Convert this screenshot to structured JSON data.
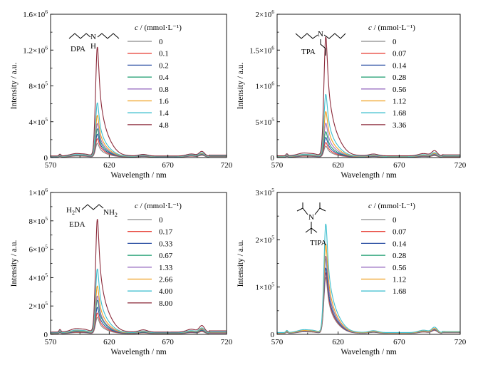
{
  "chart_data": [
    {
      "type": "line",
      "molecule_label": "DPA",
      "molecule_formula_text": [
        "N",
        "H"
      ],
      "xlabel": "Wavelength / nm",
      "ylabel": "Intensity / a.u.",
      "xlim": [
        570,
        720
      ],
      "ylim": [
        0,
        1600000
      ],
      "x_ticks": [
        570,
        620,
        670,
        720
      ],
      "x_tick_labels": [
        "570",
        "620",
        "670",
        "720"
      ],
      "y_ticks": [
        0,
        400000,
        800000,
        1200000,
        1600000
      ],
      "y_tick_labels": [
        [
          "0",
          ""
        ],
        [
          "4×10",
          "5"
        ],
        [
          "8×10",
          "5"
        ],
        [
          "1.2×10",
          "6"
        ],
        [
          "1.6×10",
          "6"
        ]
      ],
      "legend_title": "c / (mmol·L⁻¹)",
      "legend_position": "top-right",
      "peak_x": 610,
      "series": [
        {
          "name": "0",
          "color": "#8a8a8a",
          "peak": 160000,
          "baseline": 18000
        },
        {
          "name": "0.1",
          "color": "#e8463c",
          "peak": 210000,
          "baseline": 22000
        },
        {
          "name": "0.2",
          "color": "#2b4fa3",
          "peak": 260000,
          "baseline": 25000
        },
        {
          "name": "0.4",
          "color": "#1a9c6e",
          "peak": 320000,
          "baseline": 28000
        },
        {
          "name": "0.8",
          "color": "#9a6fc2",
          "peak": 380000,
          "baseline": 31000
        },
        {
          "name": "1.6",
          "color": "#f0a020",
          "peak": 470000,
          "baseline": 34000
        },
        {
          "name": "1.4",
          "color": "#3fbfcf",
          "peak": 610000,
          "baseline": 38000
        },
        {
          "name": "4.8",
          "color": "#8b2a3a",
          "peak": 1230000,
          "baseline": 50000
        }
      ]
    },
    {
      "type": "line",
      "molecule_label": "TPA",
      "molecule_formula_text": [
        "N"
      ],
      "xlabel": "Wavelength / nm",
      "ylabel": "Intensity / a.u.",
      "xlim": [
        570,
        720
      ],
      "ylim": [
        0,
        2000000
      ],
      "x_ticks": [
        570,
        620,
        670,
        720
      ],
      "x_tick_labels": [
        "570",
        "620",
        "670",
        "720"
      ],
      "y_ticks": [
        0,
        500000,
        1000000,
        1500000,
        2000000
      ],
      "y_tick_labels": [
        [
          "0",
          ""
        ],
        [
          "5×10",
          "5"
        ],
        [
          "1×10",
          "6"
        ],
        [
          "1.5×10",
          "6"
        ],
        [
          "2×10",
          "6"
        ]
      ],
      "legend_title": "c / (mmol·L⁻¹)",
      "legend_position": "top-right",
      "peak_x": 610,
      "series": [
        {
          "name": "0",
          "color": "#8a8a8a",
          "peak": 160000,
          "baseline": 20000
        },
        {
          "name": "0.07",
          "color": "#e8463c",
          "peak": 210000,
          "baseline": 24000
        },
        {
          "name": "0.14",
          "color": "#2b4fa3",
          "peak": 280000,
          "baseline": 28000
        },
        {
          "name": "0.28",
          "color": "#1a9c6e",
          "peak": 360000,
          "baseline": 32000
        },
        {
          "name": "0.56",
          "color": "#9a6fc2",
          "peak": 480000,
          "baseline": 36000
        },
        {
          "name": "1.12",
          "color": "#f0a020",
          "peak": 640000,
          "baseline": 42000
        },
        {
          "name": "1.68",
          "color": "#3fbfcf",
          "peak": 880000,
          "baseline": 50000
        },
        {
          "name": "3.36",
          "color": "#8b2a3a",
          "peak": 1680000,
          "baseline": 70000
        }
      ]
    },
    {
      "type": "line",
      "molecule_label": "EDA",
      "molecule_formula_text": [
        "H",
        "2",
        "N",
        "NH",
        "2"
      ],
      "xlabel": "Wavelength / nm",
      "ylabel": "Intensity / a.u.",
      "xlim": [
        570,
        720
      ],
      "ylim": [
        0,
        1000000
      ],
      "x_ticks": [
        570,
        620,
        670,
        720
      ],
      "x_tick_labels": [
        "570",
        "620",
        "670",
        "720"
      ],
      "y_ticks": [
        0,
        200000,
        400000,
        600000,
        800000,
        1000000
      ],
      "y_tick_labels": [
        [
          "0",
          ""
        ],
        [
          "2×10",
          "5"
        ],
        [
          "4×10",
          "5"
        ],
        [
          "6×10",
          "5"
        ],
        [
          "8×10",
          "5"
        ],
        [
          "1×10",
          "6"
        ]
      ],
      "legend_title": "c / (mmol·L⁻¹)",
      "legend_position": "top-right",
      "peak_x": 610,
      "series": [
        {
          "name": "0",
          "color": "#8a8a8a",
          "peak": 120000,
          "baseline": 14000
        },
        {
          "name": "0.17",
          "color": "#e8463c",
          "peak": 150000,
          "baseline": 17000
        },
        {
          "name": "0.33",
          "color": "#2b4fa3",
          "peak": 190000,
          "baseline": 20000
        },
        {
          "name": "0.67",
          "color": "#1a9c6e",
          "peak": 240000,
          "baseline": 23000
        },
        {
          "name": "1.33",
          "color": "#9a6fc2",
          "peak": 270000,
          "baseline": 26000
        },
        {
          "name": "2.66",
          "color": "#f0a020",
          "peak": 340000,
          "baseline": 29000
        },
        {
          "name": "4.00",
          "color": "#3fbfcf",
          "peak": 460000,
          "baseline": 33000
        },
        {
          "name": "8.00",
          "color": "#8b2a3a",
          "peak": 810000,
          "baseline": 45000
        }
      ]
    },
    {
      "type": "line",
      "molecule_label": "TIPA",
      "molecule_formula_text": [
        "N"
      ],
      "xlabel": "Wavelength / nm",
      "ylabel": "Intensity / a.u.",
      "xlim": [
        570,
        720
      ],
      "ylim": [
        0,
        300000
      ],
      "x_ticks": [
        570,
        620,
        670,
        720
      ],
      "x_tick_labels": [
        "570",
        "620",
        "670",
        "720"
      ],
      "y_ticks": [
        0,
        100000,
        200000,
        300000
      ],
      "y_tick_labels": [
        [
          "0",
          ""
        ],
        [
          "1×10",
          "5"
        ],
        [
          "2×10",
          "5"
        ],
        [
          "3×10",
          "5"
        ]
      ],
      "legend_title": "c / (mmol·L⁻¹)",
      "legend_position": "top-right",
      "peak_x": 610,
      "series": [
        {
          "name": "0",
          "color": "#8a8a8a",
          "peak": 120000,
          "baseline": 6000
        },
        {
          "name": "0.07",
          "color": "#e8463c",
          "peak": 130000,
          "baseline": 6500
        },
        {
          "name": "0.14",
          "color": "#2b4fa3",
          "peak": 140000,
          "baseline": 7000
        },
        {
          "name": "0.28",
          "color": "#1a9c6e",
          "peak": 160000,
          "baseline": 7500
        },
        {
          "name": "0.56",
          "color": "#9a6fc2",
          "peak": 165000,
          "baseline": 8000
        },
        {
          "name": "1.12",
          "color": "#f0a020",
          "peak": 190000,
          "baseline": 9000
        },
        {
          "name": "1.68",
          "color": "#3fbfcf",
          "peak": 233000,
          "baseline": 11000
        }
      ]
    }
  ]
}
